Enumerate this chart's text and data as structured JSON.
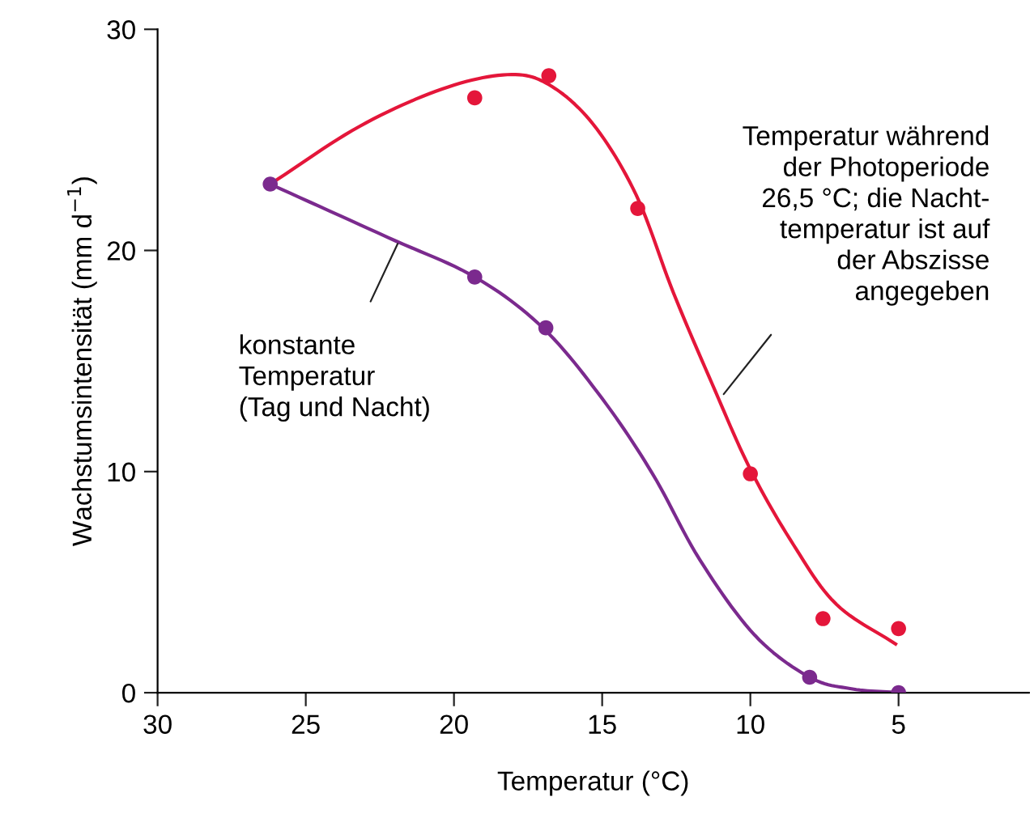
{
  "chart_data": {
    "type": "scatter",
    "xlabel": "Temperatur (°C)",
    "ylabel": "Wachstumsintensität (mm d$^{−1}$)",
    "xlim": [
      30,
      0.6
    ],
    "xticks": [
      30,
      25,
      20,
      15,
      10,
      5
    ],
    "ylim": [
      0,
      30
    ],
    "yticks": [
      0,
      10,
      20,
      30
    ],
    "grid": false,
    "legend": false,
    "series": [
      {
        "type": "scatter",
        "marker": "circle",
        "color": "#e4163a",
        "x": [
          19.3,
          16.8,
          13.8,
          10.0,
          7.55,
          5.0
        ],
        "values": [
          26.9,
          27.9,
          21.9,
          9.9,
          3.35,
          2.9
        ]
      },
      {
        "type": "scatter",
        "marker": "circle",
        "color": "#7b2a8e",
        "x": [
          26.2,
          19.3,
          16.9,
          8.0,
          5.0
        ],
        "values": [
          23.0,
          18.8,
          16.5,
          0.7,
          0.0
        ]
      },
      {
        "type": "line",
        "marker": "none",
        "color": "#e4163a",
        "x": [
          26.2,
          23.2,
          20.4,
          18.2,
          16.8,
          15.3,
          13.85,
          12.6,
          11.3,
          10.0,
          8.55,
          7.1,
          5.1
        ],
        "values": [
          23.0,
          25.6,
          27.3,
          27.95,
          27.5,
          25.7,
          22.5,
          18.1,
          14.0,
          10.1,
          6.7,
          4.0,
          2.2
        ]
      },
      {
        "type": "line",
        "marker": "none",
        "color": "#7b2a8e",
        "x": [
          26.2,
          22.25,
          19.3,
          17.0,
          15.0,
          13.3,
          11.7,
          9.85,
          8.0,
          6.55,
          5.0
        ],
        "values": [
          23.0,
          20.6,
          18.8,
          16.5,
          13.3,
          9.9,
          6.0,
          2.6,
          0.7,
          0.17,
          0.0
        ]
      }
    ],
    "annotations": [
      {
        "text": "konstante\nTemperatur\n(Tag und Nacht)",
        "x": 21.9,
        "y": 20.3
      },
      {
        "text": "Temperatur während\nder Photoperiode\n26,5 °C; die Nacht-\ntemperatur ist auf\nder Abszisse\nangegeben",
        "x": 10.9,
        "y": 13.5
      }
    ]
  }
}
